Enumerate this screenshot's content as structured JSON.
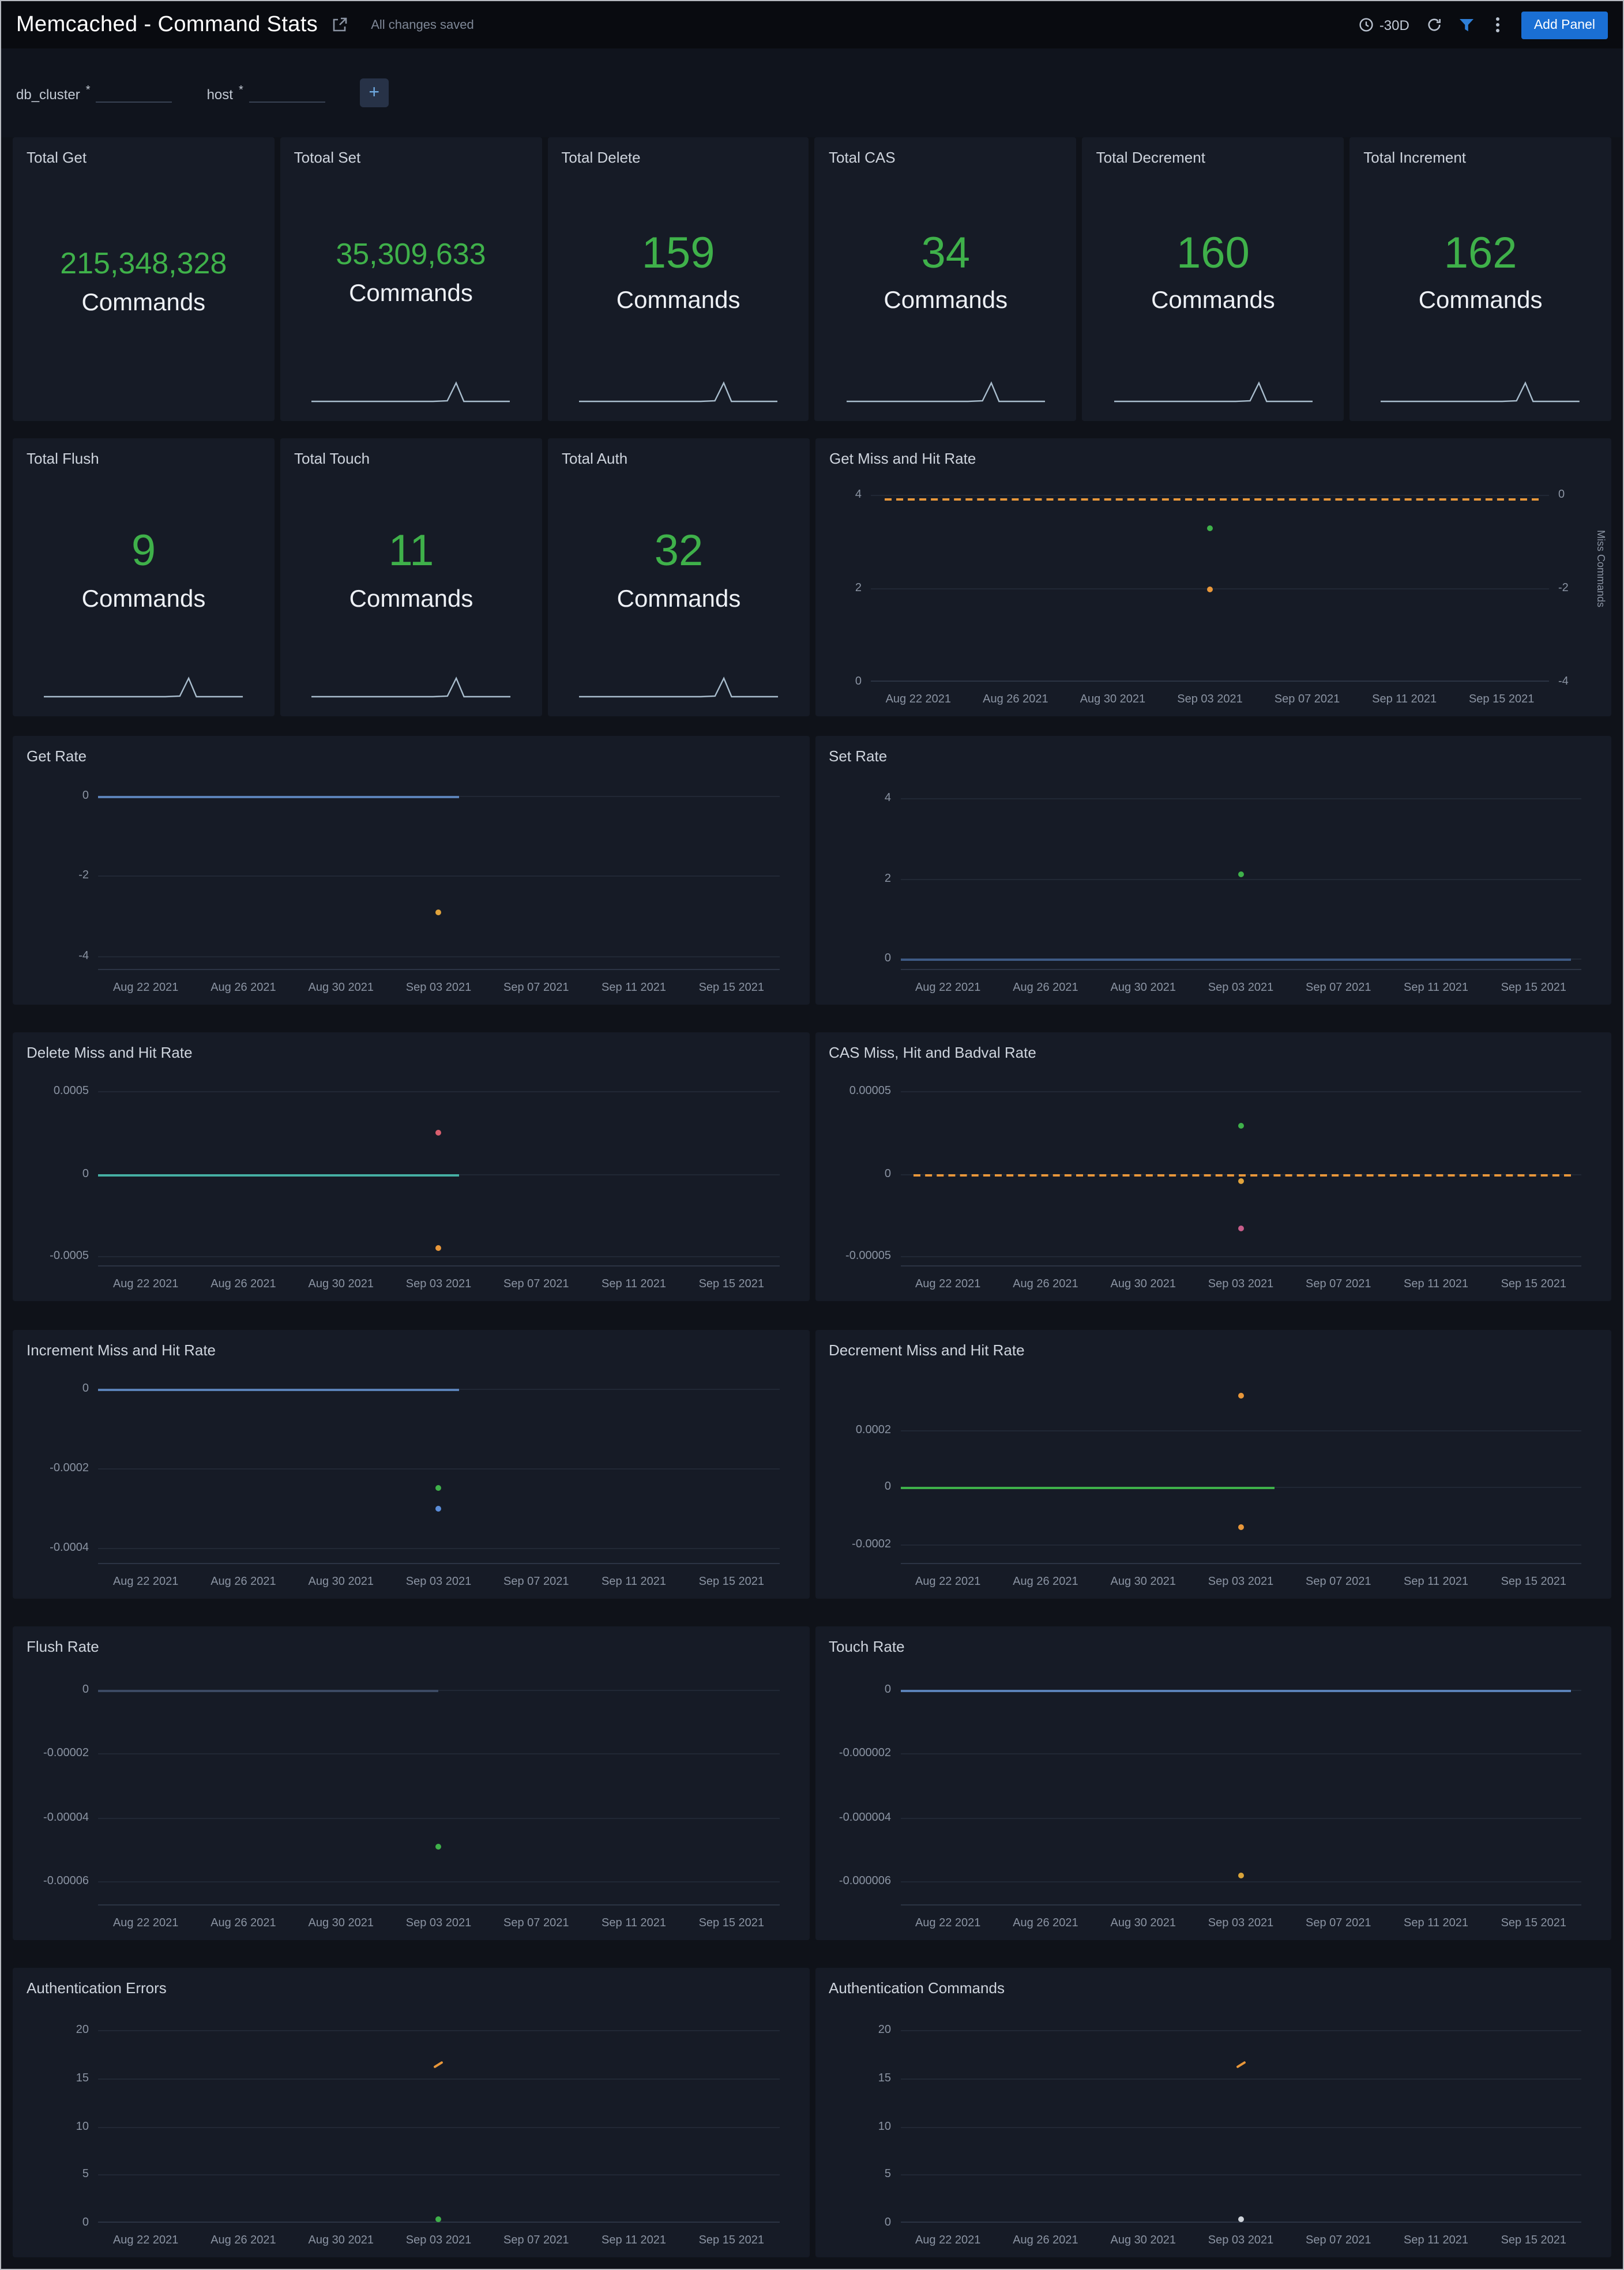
{
  "header": {
    "title": "Memcached - Command Stats",
    "saved_status": "All changes saved",
    "time_range": "-30D",
    "add_panel": "Add Panel"
  },
  "filter_bar": {
    "filters": [
      {
        "label": "db_cluster",
        "required_mark": "*",
        "value": ""
      },
      {
        "label": "host",
        "required_mark": "*",
        "value": ""
      }
    ],
    "add_filter": "+"
  },
  "colors": {
    "green": "#3fb14a",
    "orange": "#e8973a",
    "yellow": "#d9a43a",
    "blue": "#5b82b8",
    "teal": "#45b0a4",
    "pink": "#d95f6e",
    "magenta": "#c75d8a",
    "accent_blue": "#1a6fd4",
    "panel_bg": "#161b26"
  },
  "stat_panels": [
    {
      "title": "Total Get",
      "value": "215,348,328",
      "unit": "Commands",
      "spark": false
    },
    {
      "title": "Totoal Set",
      "value": "35,309,633",
      "unit": "Commands",
      "spark": true
    },
    {
      "title": "Total Delete",
      "value": "159",
      "unit": "Commands",
      "spark": true
    },
    {
      "title": "Total CAS",
      "value": "34",
      "unit": "Commands",
      "spark": true
    },
    {
      "title": "Total Decrement",
      "value": "160",
      "unit": "Commands",
      "spark": true
    },
    {
      "title": "Total Increment",
      "value": "162",
      "unit": "Commands",
      "spark": true
    },
    {
      "title": "Total Flush",
      "value": "9",
      "unit": "Commands",
      "spark": true
    },
    {
      "title": "Total Touch",
      "value": "11",
      "unit": "Commands",
      "spark": true
    },
    {
      "title": "Total Auth",
      "value": "32",
      "unit": "Commands",
      "spark": true
    }
  ],
  "x_ticks": [
    "Aug 22 2021",
    "Aug 26 2021",
    "Aug 30 2021",
    "Sep 03 2021",
    "Sep 07 2021",
    "Sep 11 2021",
    "Sep 15 2021"
  ],
  "chart_data": [
    {
      "id": "get-miss-and-hit-rate",
      "type": "line",
      "title": "Get Miss and Hit Rate",
      "ylim": [
        0,
        4.18
      ],
      "y_ticks": [
        {
          "v": 4,
          "label": "4"
        },
        {
          "v": 2,
          "label": "2"
        },
        {
          "v": 0,
          "label": "0"
        }
      ],
      "right_y_ticks": [
        {
          "v": 4,
          "label": "0"
        },
        {
          "v": 2,
          "label": "-2"
        },
        {
          "v": 0,
          "label": "-4"
        }
      ],
      "right_axis_label": "Miss Commands",
      "margins": {
        "left": 40,
        "right": 46
      },
      "lines": [
        {
          "series": "miss",
          "y": 3.93,
          "x0": 0.02,
          "x1": 0.985,
          "color": "#e8973a",
          "dash": true
        }
      ],
      "points": [
        {
          "series": "hit",
          "x": "Sep 03 2021",
          "y": 3.3,
          "color": "#3fb14a"
        },
        {
          "series": "miss",
          "x": "Sep 03 2021",
          "y": 1.97,
          "color": "#e8973a"
        }
      ]
    },
    {
      "id": "get-rate",
      "type": "line",
      "title": "Get Rate",
      "ylim": [
        -4.35,
        0.28
      ],
      "y_ticks": [
        {
          "v": 0,
          "label": "0"
        },
        {
          "v": -2,
          "label": "-2"
        },
        {
          "v": -4,
          "label": "-4"
        }
      ],
      "lines": [
        {
          "series": "get",
          "y": 0,
          "x0": 0,
          "x1": 0.53,
          "color": "#5b82b8",
          "dash": false
        }
      ],
      "points": [
        {
          "series": "get",
          "x": "Sep 03 2021",
          "y": -2.9,
          "color": "#e0a33c"
        }
      ]
    },
    {
      "id": "set-rate",
      "type": "line",
      "title": "Set Rate",
      "ylim": [
        -0.28,
        4.35
      ],
      "y_ticks": [
        {
          "v": 4,
          "label": "4"
        },
        {
          "v": 2,
          "label": "2"
        },
        {
          "v": 0,
          "label": "0"
        }
      ],
      "lines": [
        {
          "series": "set",
          "y": 0,
          "x0": 0,
          "x1": 0.985,
          "color": "#3e5a85",
          "dash": false
        }
      ],
      "points": [
        {
          "series": "set",
          "x": "Sep 03 2021",
          "y": 2.1,
          "color": "#3fb14a"
        }
      ]
    },
    {
      "id": "delete-miss-and-hit-rate",
      "type": "line",
      "title": "Delete Miss and Hit Rate",
      "ylim": [
        -0.00056,
        0.00056
      ],
      "y_ticks": [
        {
          "v": 0.0005,
          "label": "0.0005"
        },
        {
          "v": 0,
          "label": "0"
        },
        {
          "v": -0.0005,
          "label": "-0.0005"
        }
      ],
      "lines": [
        {
          "series": "hit",
          "y": 0,
          "x0": 0,
          "x1": 0.53,
          "color": "#45b0a4",
          "dash": false
        }
      ],
      "points": [
        {
          "series": "miss",
          "x": "Sep 03 2021",
          "y": 0.00025,
          "color": "#d95f6e"
        },
        {
          "series": "hit",
          "x": "Sep 03 2021",
          "y": -0.00045,
          "color": "#e8973a"
        }
      ]
    },
    {
      "id": "cas-miss-hit-and-badval-rate",
      "type": "line",
      "title": "CAS Miss, Hit and Badval Rate",
      "ylim": [
        -5.6e-05,
        5.6e-05
      ],
      "y_ticks": [
        {
          "v": 5e-05,
          "label": "0.00005"
        },
        {
          "v": 0,
          "label": "0"
        },
        {
          "v": -5e-05,
          "label": "-0.00005"
        }
      ],
      "lines": [
        {
          "series": "badval",
          "y": 0,
          "x0": 0.02,
          "x1": 0.985,
          "color": "#e8973a",
          "dash": true
        }
      ],
      "points": [
        {
          "series": "hit",
          "x": "Sep 03 2021",
          "y": 2.9e-05,
          "color": "#3fb14a"
        },
        {
          "series": "badval",
          "x": "Sep 03 2021",
          "y": -4.7e-06,
          "color": "#e0a33c"
        },
        {
          "series": "miss",
          "x": "Sep 03 2021",
          "y": -3.28e-05,
          "color": "#c75d8a"
        }
      ]
    },
    {
      "id": "increment-miss-and-hit-rate",
      "type": "line",
      "title": "Increment Miss and Hit Rate",
      "ylim": [
        -0.00044,
        2.5e-05
      ],
      "y_ticks": [
        {
          "v": 0,
          "label": "0"
        },
        {
          "v": -0.0002,
          "label": "-0.0002"
        },
        {
          "v": -0.0004,
          "label": "-0.0004"
        }
      ],
      "lines": [
        {
          "series": "hit",
          "y": 0,
          "x0": 0,
          "x1": 0.53,
          "color": "#5b82b8",
          "dash": false
        }
      ],
      "points": [
        {
          "series": "hit",
          "x": "Sep 03 2021",
          "y": -0.00025,
          "color": "#3fb14a"
        },
        {
          "series": "miss",
          "x": "Sep 03 2021",
          "y": -0.0003,
          "color": "#5b8dd9"
        }
      ]
    },
    {
      "id": "decrement-miss-and-hit-rate",
      "type": "line",
      "title": "Decrement Miss and Hit Rate",
      "ylim": [
        -0.00027,
        0.00038
      ],
      "y_ticks": [
        {
          "v": 0.0002,
          "label": "0.0002"
        },
        {
          "v": 0,
          "label": "0"
        },
        {
          "v": -0.0002,
          "label": "-0.0002"
        }
      ],
      "lines": [
        {
          "series": "hit",
          "y": 0,
          "x0": 0,
          "x1": 0.55,
          "color": "#3fb14a",
          "dash": false
        }
      ],
      "points": [
        {
          "series": "miss",
          "x": "Sep 03 2021",
          "y": 0.00032,
          "color": "#e8973a"
        },
        {
          "series": "miss",
          "x": "Sep 03 2021",
          "y": -0.00014,
          "color": "#e8973a"
        }
      ]
    },
    {
      "id": "flush-rate",
      "type": "line",
      "title": "Flush Rate",
      "ylim": [
        -6.75e-05,
        4.5e-06
      ],
      "y_ticks": [
        {
          "v": 0,
          "label": "0"
        },
        {
          "v": -2e-05,
          "label": "-0.00002"
        },
        {
          "v": -4e-05,
          "label": "-0.00004"
        },
        {
          "v": -6e-05,
          "label": "-0.00006"
        }
      ],
      "lines": [
        {
          "series": "flush",
          "y": 0,
          "x0": 0,
          "x1": 0.5,
          "color": "#3c4a63",
          "dash": false
        }
      ],
      "points": [
        {
          "series": "flush",
          "x": "Sep 03 2021",
          "y": -4.9e-05,
          "color": "#3fb14a"
        }
      ]
    },
    {
      "id": "touch-rate",
      "type": "line",
      "title": "Touch Rate",
      "ylim": [
        -6.75e-06,
        4.5e-07
      ],
      "y_ticks": [
        {
          "v": 0,
          "label": "0"
        },
        {
          "v": -2e-06,
          "label": "-0.000002"
        },
        {
          "v": -4e-06,
          "label": "-0.000004"
        },
        {
          "v": -6e-06,
          "label": "-0.000006"
        }
      ],
      "lines": [
        {
          "series": "touch",
          "y": 0,
          "x0": 0,
          "x1": 0.985,
          "color": "#5b82b8",
          "dash": false
        }
      ],
      "points": [
        {
          "series": "touch",
          "x": "Sep 03 2021",
          "y": -5.8e-06,
          "color": "#d9a43a"
        }
      ]
    },
    {
      "id": "authentication-errors",
      "type": "line",
      "title": "Authentication Errors",
      "ylim": [
        0,
        21.5
      ],
      "y_ticks": [
        {
          "v": 20,
          "label": "20"
        },
        {
          "v": 15,
          "label": "15"
        },
        {
          "v": 10,
          "label": "10"
        },
        {
          "v": 5,
          "label": "5"
        },
        {
          "v": 0,
          "label": "0"
        }
      ],
      "lines": [],
      "points": [
        {
          "series": "errors",
          "x": "Sep 03 2021",
          "y": 16.4,
          "color": "#e8973a",
          "shape": "dash"
        },
        {
          "series": "errors",
          "x": "Sep 03 2021",
          "y": 0.4,
          "color": "#3fb14a"
        }
      ]
    },
    {
      "id": "authentication-commands",
      "type": "line",
      "title": "Authentication Commands",
      "ylim": [
        0,
        21.5
      ],
      "y_ticks": [
        {
          "v": 20,
          "label": "20"
        },
        {
          "v": 15,
          "label": "15"
        },
        {
          "v": 10,
          "label": "10"
        },
        {
          "v": 5,
          "label": "5"
        },
        {
          "v": 0,
          "label": "0"
        }
      ],
      "lines": [],
      "points": [
        {
          "series": "commands",
          "x": "Sep 03 2021",
          "y": 16.4,
          "color": "#e8973a",
          "shape": "dash"
        },
        {
          "series": "commands",
          "x": "Sep 03 2021",
          "y": 0.4,
          "color": "#cfd4da"
        }
      ]
    }
  ]
}
